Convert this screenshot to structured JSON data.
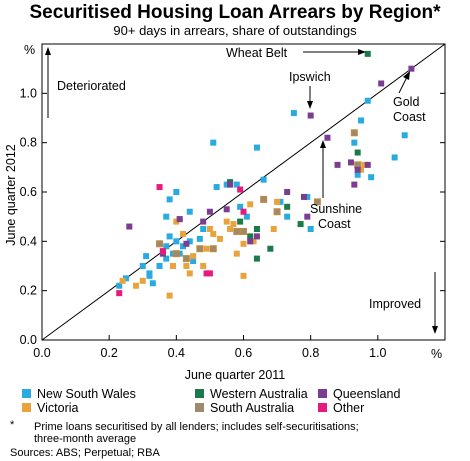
{
  "chart_data": {
    "type": "scatter",
    "title": "Securitised Housing Loan Arrears by Region*",
    "subtitle": "90+ days in arrears, share of outstandings",
    "xlabel": "June quarter 2011",
    "ylabel": "June quarter 2012",
    "x_unit": "%",
    "y_unit": "%",
    "xlim": [
      0.0,
      1.2
    ],
    "ylim": [
      0.0,
      1.2
    ],
    "x_ticks": [
      "0.0",
      "0.2",
      "0.4",
      "0.6",
      "0.8",
      "1.0"
    ],
    "y_ticks": [
      "0.0",
      "0.2",
      "0.4",
      "0.6",
      "0.8",
      "1.0"
    ],
    "x_tick_values": [
      0.0,
      0.2,
      0.4,
      0.6,
      0.8,
      1.0
    ],
    "y_tick_values": [
      0.0,
      0.2,
      0.4,
      0.6,
      0.8,
      1.0
    ],
    "grid": false,
    "reference_line": "45-degree line",
    "series": [
      {
        "name": "New South Wales",
        "color": "#29abe2",
        "points": [
          [
            0.23,
            0.22
          ],
          [
            0.25,
            0.25
          ],
          [
            0.3,
            0.3
          ],
          [
            0.31,
            0.34
          ],
          [
            0.32,
            0.27
          ],
          [
            0.32,
            0.26
          ],
          [
            0.33,
            0.23
          ],
          [
            0.35,
            0.3
          ],
          [
            0.36,
            0.36
          ],
          [
            0.37,
            0.38
          ],
          [
            0.37,
            0.33
          ],
          [
            0.38,
            0.42
          ],
          [
            0.39,
            0.35
          ],
          [
            0.37,
            0.5
          ],
          [
            0.38,
            0.57
          ],
          [
            0.4,
            0.4
          ],
          [
            0.4,
            0.6
          ],
          [
            0.41,
            0.35
          ],
          [
            0.42,
            0.38
          ],
          [
            0.44,
            0.52
          ],
          [
            0.44,
            0.4
          ],
          [
            0.45,
            0.32
          ],
          [
            0.47,
            0.41
          ],
          [
            0.48,
            0.45
          ],
          [
            0.51,
            0.8
          ],
          [
            0.52,
            0.62
          ],
          [
            0.55,
            0.63
          ],
          [
            0.58,
            0.63
          ],
          [
            0.59,
            0.54
          ],
          [
            0.61,
            0.5
          ],
          [
            0.64,
            0.78
          ],
          [
            0.66,
            0.65
          ],
          [
            0.71,
            0.56
          ],
          [
            0.73,
            0.5
          ],
          [
            0.75,
            0.92
          ],
          [
            0.79,
            0.58
          ],
          [
            0.8,
            0.45
          ],
          [
            0.93,
            0.8
          ],
          [
            0.94,
            0.67
          ],
          [
            0.95,
            0.89
          ],
          [
            0.97,
            0.97
          ],
          [
            0.98,
            0.66
          ],
          [
            1.05,
            0.74
          ],
          [
            1.08,
            0.83
          ]
        ]
      },
      {
        "name": "Victoria",
        "color": "#e8a33d",
        "points": [
          [
            0.24,
            0.24
          ],
          [
            0.28,
            0.22
          ],
          [
            0.3,
            0.24
          ],
          [
            0.38,
            0.18
          ],
          [
            0.39,
            0.3
          ],
          [
            0.4,
            0.48
          ],
          [
            0.41,
            0.49
          ],
          [
            0.42,
            0.43
          ],
          [
            0.43,
            0.3
          ],
          [
            0.44,
            0.27
          ],
          [
            0.45,
            0.34
          ],
          [
            0.48,
            0.3
          ],
          [
            0.49,
            0.37
          ],
          [
            0.5,
            0.45
          ],
          [
            0.51,
            0.43
          ],
          [
            0.53,
            0.41
          ],
          [
            0.55,
            0.48
          ],
          [
            0.56,
            0.45
          ],
          [
            0.57,
            0.47
          ],
          [
            0.58,
            0.35
          ],
          [
            0.6,
            0.39
          ],
          [
            0.6,
            0.26
          ],
          [
            0.62,
            0.55
          ],
          [
            0.63,
            0.4
          ],
          [
            0.69,
            0.45
          ],
          [
            0.7,
            0.56
          ],
          [
            0.95,
            0.69
          ],
          [
            0.96,
            0.71
          ]
        ]
      },
      {
        "name": "Western Australia",
        "color": "#1a7a4c",
        "points": [
          [
            0.56,
            0.64
          ],
          [
            0.59,
            0.48
          ],
          [
            0.62,
            0.42
          ],
          [
            0.64,
            0.33
          ],
          [
            0.64,
            0.45
          ],
          [
            0.68,
            0.37
          ],
          [
            0.73,
            0.54
          ],
          [
            0.77,
            0.47
          ],
          [
            0.93,
            0.84
          ],
          [
            0.94,
            0.76
          ],
          [
            0.97,
            1.16
          ]
        ]
      },
      {
        "name": "South Australia",
        "color": "#9c8a6d",
        "points": [
          [
            0.35,
            0.39
          ],
          [
            0.4,
            0.35
          ],
          [
            0.43,
            0.33
          ],
          [
            0.47,
            0.37
          ],
          [
            0.51,
            0.37
          ],
          [
            0.58,
            0.44
          ],
          [
            0.6,
            0.44
          ],
          [
            0.66,
            0.57
          ],
          [
            0.7,
            0.52
          ],
          [
            0.82,
            0.56
          ],
          [
            0.93,
            0.84
          ],
          [
            0.94,
            0.71
          ]
        ]
      },
      {
        "name": "Queensland",
        "color": "#7a3d8f",
        "points": [
          [
            0.26,
            0.46
          ],
          [
            0.36,
            0.35
          ],
          [
            0.41,
            0.49
          ],
          [
            0.43,
            0.39
          ],
          [
            0.48,
            0.48
          ],
          [
            0.5,
            0.52
          ],
          [
            0.55,
            0.53
          ],
          [
            0.56,
            0.63
          ],
          [
            0.62,
            0.4
          ],
          [
            0.64,
            0.42
          ],
          [
            0.73,
            0.6
          ],
          [
            0.78,
            0.58
          ],
          [
            0.79,
            0.5
          ],
          [
            0.8,
            0.91
          ],
          [
            0.85,
            0.82
          ],
          [
            0.88,
            0.71
          ],
          [
            0.92,
            0.72
          ],
          [
            0.93,
            0.63
          ],
          [
            0.94,
            0.69
          ],
          [
            0.97,
            0.71
          ],
          [
            1.01,
            1.04
          ],
          [
            1.1,
            1.1
          ]
        ]
      },
      {
        "name": "Other",
        "color": "#e6197d",
        "points": [
          [
            0.23,
            0.19
          ],
          [
            0.35,
            0.62
          ],
          [
            0.36,
            0.36
          ],
          [
            0.49,
            0.27
          ],
          [
            0.5,
            0.27
          ],
          [
            0.59,
            0.61
          ],
          [
            0.6,
            0.52
          ]
        ]
      }
    ],
    "annotations": {
      "deteriorated": "Deteriorated",
      "improved": "Improved",
      "wheat_belt": "Wheat Belt",
      "ipswich": "Ipswich",
      "gold_coast_1": "Gold",
      "gold_coast_2": "Coast",
      "sunshine_coast_1": "Sunshine",
      "sunshine_coast_2": "Coast"
    },
    "legend_position": "bottom",
    "footnote_1": "Prime loans securitised by all lenders; includes self-securitisations;",
    "footnote_2": "three-month average",
    "footnote_marker": "*",
    "sources": "Sources: ABS; Perpetual; RBA"
  }
}
